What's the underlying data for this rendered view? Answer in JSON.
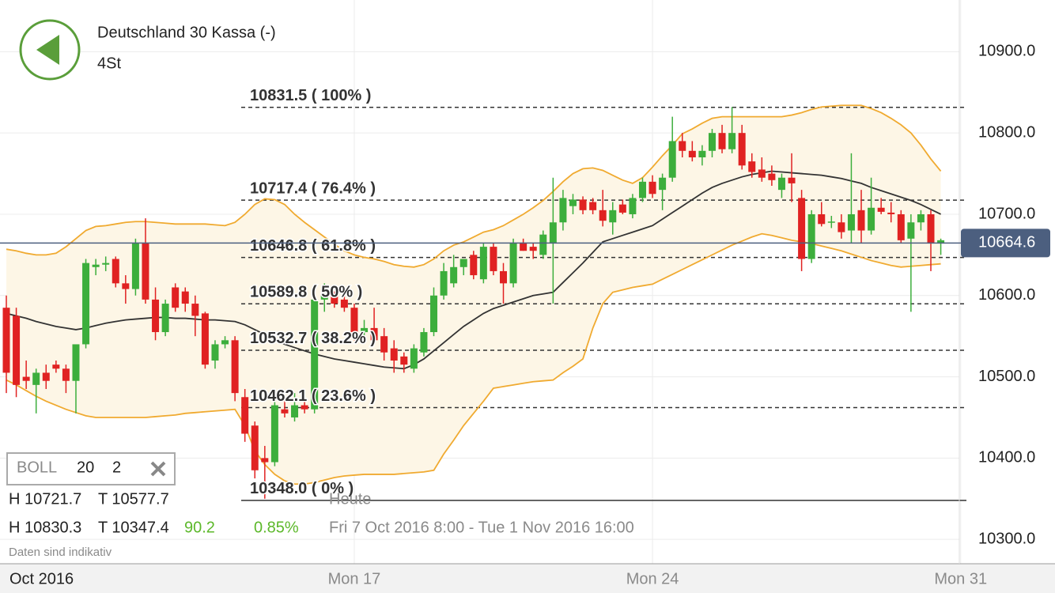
{
  "header": {
    "title": "Deutschland 30 Kassa (-)",
    "interval": "4St"
  },
  "indicator": {
    "name": "BOLL",
    "period": 20,
    "deviation": 2
  },
  "stats": {
    "bands_high": "H 10721.7",
    "bands_low": "T 10577.7",
    "high": "H 10830.3",
    "low": "T 10347.4",
    "change": "90.2",
    "change_pct": "0.85%",
    "today": "Heute",
    "range": "Fri 7 Oct 2016 8:00 - Tue 1 Nov 2016 16:00",
    "note": "Daten sind indikativ"
  },
  "chart_data": {
    "type": "candlestick",
    "categories": [
      "Oct 2016",
      null,
      null,
      null,
      null,
      null,
      null,
      null,
      null,
      null,
      null,
      null,
      null,
      null,
      null,
      null,
      null,
      null,
      null,
      null,
      null,
      null,
      null,
      null,
      null,
      null,
      null,
      null,
      null,
      null,
      null,
      null,
      null,
      null,
      null,
      "Mon 17",
      null,
      null,
      null,
      null,
      null,
      null,
      null,
      null,
      null,
      null,
      null,
      null,
      null,
      null,
      null,
      null,
      null,
      null,
      null,
      null,
      null,
      null,
      null,
      null,
      null,
      null,
      null,
      null,
      null,
      "Mon 24",
      null,
      null,
      null,
      null,
      null,
      null,
      null,
      null,
      null,
      null,
      null,
      null,
      null,
      null,
      null,
      null,
      null,
      null,
      null,
      null,
      null,
      null,
      null,
      null,
      null,
      null,
      null,
      null,
      null,
      null,
      "Mon 31"
    ],
    "candles": [
      [
        10585,
        10600,
        10480,
        10505
      ],
      [
        10575,
        10585,
        10475,
        10490
      ],
      [
        10500,
        10520,
        10485,
        10495
      ],
      [
        10490,
        10510,
        10455,
        10505
      ],
      [
        10505,
        10515,
        10485,
        10495
      ],
      [
        10515,
        10520,
        10505,
        10510
      ],
      [
        10510,
        10515,
        10480,
        10495
      ],
      [
        10495,
        10505,
        10455,
        10540
      ],
      [
        10540,
        10645,
        10535,
        10640
      ],
      [
        10635,
        10645,
        10625,
        10638
      ],
      [
        10638,
        10648,
        10630,
        10640
      ],
      [
        10645,
        10648,
        10610,
        10615
      ],
      [
        10615,
        10625,
        10590,
        10608
      ],
      [
        10608,
        10670,
        10600,
        10665
      ],
      [
        10665,
        10695,
        10590,
        10595
      ],
      [
        10595,
        10610,
        10545,
        10555
      ],
      [
        10555,
        10595,
        10550,
        10590
      ],
      [
        10610,
        10615,
        10580,
        10585
      ],
      [
        10605,
        10610,
        10580,
        10590
      ],
      [
        10590,
        10600,
        10550,
        10575
      ],
      [
        10578,
        10580,
        10510,
        10515
      ],
      [
        10520,
        10545,
        10510,
        10540
      ],
      [
        10540,
        10550,
        10535,
        10545
      ],
      [
        10545,
        10550,
        10470,
        10480
      ],
      [
        10475,
        10485,
        10420,
        10430
      ],
      [
        10440,
        10445,
        10375,
        10385
      ],
      [
        10400,
        10415,
        10350,
        10395
      ],
      [
        10395,
        10470,
        10390,
        10465
      ],
      [
        10460,
        10470,
        10450,
        10455
      ],
      [
        10450,
        10480,
        10445,
        10465
      ],
      [
        10465,
        10480,
        10455,
        10460
      ],
      [
        10460,
        10605,
        10455,
        10595
      ],
      [
        10595,
        10615,
        10580,
        10600
      ],
      [
        10600,
        10605,
        10585,
        10590
      ],
      [
        10595,
        10600,
        10580,
        10585
      ],
      [
        10585,
        10590,
        10545,
        10555
      ],
      [
        10555,
        10570,
        10545,
        10560
      ],
      [
        10560,
        10585,
        10540,
        10545
      ],
      [
        10550,
        10560,
        10520,
        10530
      ],
      [
        10535,
        10545,
        10505,
        10520
      ],
      [
        10525,
        10530,
        10505,
        10515
      ],
      [
        10510,
        10540,
        10505,
        10535
      ],
      [
        10530,
        10560,
        10525,
        10555
      ],
      [
        10555,
        10610,
        10550,
        10600
      ],
      [
        10600,
        10640,
        10595,
        10630
      ],
      [
        10615,
        10650,
        10610,
        10635
      ],
      [
        10635,
        10645,
        10625,
        10645
      ],
      [
        10650,
        10655,
        10620,
        10625
      ],
      [
        10620,
        10665,
        10615,
        10660
      ],
      [
        10660,
        10665,
        10625,
        10630
      ],
      [
        10630,
        10640,
        10590,
        10615
      ],
      [
        10615,
        10670,
        10610,
        10665
      ],
      [
        10665,
        10670,
        10655,
        10655
      ],
      [
        10660,
        10665,
        10645,
        10655
      ],
      [
        10650,
        10680,
        10645,
        10675
      ],
      [
        10665,
        10745,
        10590,
        10690
      ],
      [
        10690,
        10730,
        10680,
        10720
      ],
      [
        10710,
        10725,
        10700,
        10718
      ],
      [
        10718,
        10722,
        10700,
        10705
      ],
      [
        10715,
        10720,
        10700,
        10705
      ],
      [
        10705,
        10730,
        10685,
        10692
      ],
      [
        10690,
        10715,
        10675,
        10705
      ],
      [
        10712,
        10718,
        10700,
        10702
      ],
      [
        10700,
        10725,
        10695,
        10720
      ],
      [
        10720,
        10745,
        10715,
        10740
      ],
      [
        10740,
        10748,
        10720,
        10725
      ],
      [
        10730,
        10750,
        10705,
        10745
      ],
      [
        10745,
        10820,
        10740,
        10790
      ],
      [
        10790,
        10800,
        10770,
        10778
      ],
      [
        10778,
        10790,
        10765,
        10770
      ],
      [
        10770,
        10785,
        10760,
        10778
      ],
      [
        10778,
        10805,
        10770,
        10800
      ],
      [
        10800,
        10810,
        10775,
        10780
      ],
      [
        10780,
        10832,
        10775,
        10800
      ],
      [
        10800,
        10810,
        10755,
        10760
      ],
      [
        10765,
        10775,
        10745,
        10752
      ],
      [
        10755,
        10770,
        10740,
        10745
      ],
      [
        10750,
        10760,
        10735,
        10742
      ],
      [
        10730,
        10750,
        10720,
        10745
      ],
      [
        10745,
        10775,
        10715,
        10738
      ],
      [
        10720,
        10730,
        10630,
        10645
      ],
      [
        10645,
        10705,
        10640,
        10700
      ],
      [
        10700,
        10715,
        10685,
        10688
      ],
      [
        10690,
        10698,
        10683,
        10691
      ],
      [
        10690,
        10700,
        10670,
        10678
      ],
      [
        10680,
        10775,
        10665,
        10700
      ],
      [
        10705,
        10730,
        10665,
        10680
      ],
      [
        10680,
        10745,
        10675,
        10708
      ],
      [
        10708,
        10720,
        10700,
        10703
      ],
      [
        10702,
        10715,
        10690,
        10700
      ],
      [
        10700,
        10705,
        10665,
        10668
      ],
      [
        10670,
        10700,
        10580,
        10690
      ],
      [
        10690,
        10705,
        10680,
        10700
      ],
      [
        10700,
        10705,
        10630,
        10665
      ],
      [
        10665,
        10670,
        10650,
        10668
      ],
      null,
      null
    ],
    "upper": [
      10657,
      10655,
      10652,
      10650,
      10650,
      10652,
      10660,
      10670,
      10680,
      10685,
      10686,
      10688,
      10690,
      10691,
      10691,
      10690,
      10689,
      10688,
      10688,
      10688,
      10688,
      10687,
      10686,
      10690,
      10700,
      10712,
      10719,
      10718,
      10712,
      10700,
      10690,
      10681,
      10672,
      10663,
      10655,
      10650,
      10647,
      10645,
      10642,
      10638,
      10636,
      10635,
      10638,
      10645,
      10655,
      10662,
      10666,
      10672,
      10678,
      10681,
      10686,
      10693,
      10700,
      10708,
      10717,
      10728,
      10740,
      10750,
      10756,
      10757,
      10754,
      10748,
      10742,
      10738,
      10745,
      10758,
      10772,
      10785,
      10799,
      10805,
      10812,
      10818,
      10820,
      10820,
      10820,
      10820,
      10820,
      10820,
      10820,
      10822,
      10825,
      10829,
      10832,
      10833,
      10834,
      10834,
      10834,
      10830,
      10825,
      10818,
      10810,
      10800,
      10785,
      10768,
      10753,
      null,
      null
    ],
    "middle": [
      10578,
      10575,
      10572,
      10568,
      10565,
      10562,
      10560,
      10558,
      10560,
      10563,
      10566,
      10568,
      10570,
      10571,
      10572,
      10573,
      10573,
      10572,
      10572,
      10571,
      10570,
      10570,
      10569,
      10568,
      10564,
      10558,
      10552,
      10546,
      10540,
      10536,
      10532,
      10528,
      10525,
      10522,
      10520,
      10518,
      10516,
      10514,
      10512,
      10511,
      10510,
      10515,
      10522,
      10532,
      10542,
      10552,
      10562,
      10570,
      10578,
      10584,
      10588,
      10592,
      10596,
      10600,
      10602,
      10604,
      10616,
      10628,
      10640,
      10653,
      10666,
      10670,
      10674,
      10678,
      10682,
      10686,
      10694,
      10702,
      10710,
      10718,
      10726,
      10733,
      10738,
      10742,
      10746,
      10749,
      10751,
      10753,
      10752,
      10751,
      10750,
      10749,
      10748,
      10746,
      10744,
      10741,
      10738,
      10733,
      10729,
      10725,
      10721,
      10717,
      10712,
      10706,
      10700,
      null,
      null
    ],
    "lower": [
      10496,
      10490,
      10483,
      10476,
      10470,
      10465,
      10460,
      10456,
      10452,
      10450,
      10450,
      10450,
      10450,
      10450,
      10450,
      10451,
      10452,
      10453,
      10455,
      10456,
      10457,
      10458,
      10459,
      10460,
      10440,
      10409,
      10392,
      10380,
      10372,
      10368,
      10368,
      10370,
      10373,
      10376,
      10378,
      10379,
      10380,
      10380,
      10380,
      10380,
      10381,
      10382,
      10383,
      10385,
      10405,
      10422,
      10440,
      10455,
      10470,
      10486,
      10488,
      10490,
      10492,
      10494,
      10495,
      10496,
      10505,
      10513,
      10522,
      10560,
      10590,
      10604,
      10607,
      10610,
      10612,
      10614,
      10620,
      10626,
      10632,
      10638,
      10644,
      10650,
      10656,
      10662,
      10667,
      10672,
      10676,
      10674,
      10671,
      10668,
      10666,
      10664,
      10661,
      10658,
      10655,
      10651,
      10647,
      10643,
      10640,
      10637,
      10635,
      10636,
      10637,
      10638,
      10639,
      null,
      null
    ],
    "levels": [
      {
        "value": 10831.5,
        "label": "10831.5 ( 100% )",
        "style": "dashed"
      },
      {
        "value": 10717.4,
        "label": "10717.4 ( 76.4% )",
        "style": "dashed"
      },
      {
        "value": 10646.8,
        "label": "10646.8 ( 61.8% )",
        "style": "dashed"
      },
      {
        "value": 10589.8,
        "label": "10589.8 ( 50% )",
        "style": "dashed"
      },
      {
        "value": 10532.7,
        "label": "10532.7 ( 38.2% )",
        "style": "dashed"
      },
      {
        "value": 10462.1,
        "label": "10462.1 ( 23.6% )",
        "style": "dashed"
      },
      {
        "value": 10348.0,
        "label": "10348.0 ( 0% )",
        "style": "solid"
      }
    ],
    "last_price": 10664.6,
    "ylim": [
      10270,
      10963.6
    ],
    "yticks": [
      {
        "value": 10900,
        "label": "10900.0"
      },
      {
        "value": 10800,
        "label": "10800.0"
      },
      {
        "value": 10700,
        "label": "10700.0"
      },
      {
        "value": 10600,
        "label": "10600.0"
      },
      {
        "value": 10500,
        "label": "10500.0"
      },
      {
        "value": 10400,
        "label": "10400.0"
      },
      {
        "value": 10300,
        "label": "10300.0"
      }
    ],
    "grid": true,
    "up_color": "#3cae3c",
    "down_color": "#e02222",
    "band_color": "#f0aa30",
    "band_fill": "#fdf6e6",
    "middle_color": "#333333",
    "level_color": "#333333",
    "last_color": "#4c5f7f"
  }
}
